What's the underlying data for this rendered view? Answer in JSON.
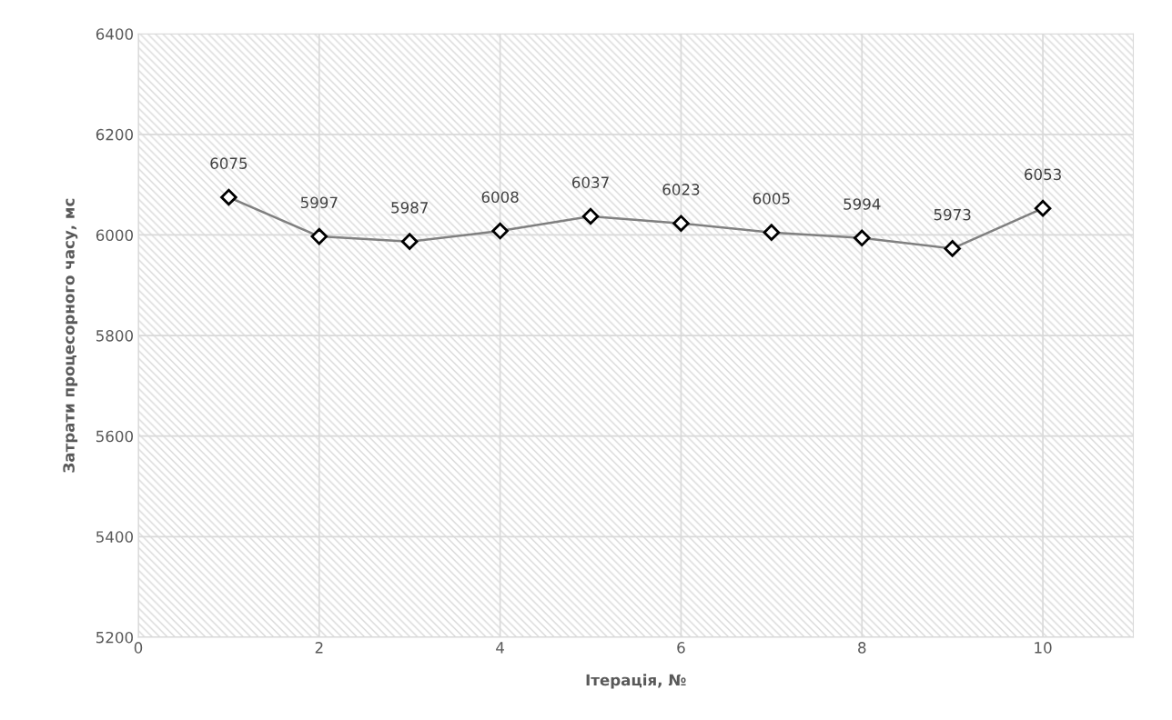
{
  "chart_data": {
    "type": "line",
    "xlabel": "Ітерація, №",
    "ylabel": "Затрати процесорного часу, мс",
    "x": [
      1,
      2,
      3,
      4,
      5,
      6,
      7,
      8,
      9,
      10
    ],
    "series": [
      {
        "color": "#808080",
        "values": [
          6075,
          5997,
          5987,
          6008,
          6037,
          6023,
          6005,
          5994,
          5973,
          6053
        ]
      }
    ],
    "xlim": [
      0,
      11
    ],
    "xticks": [
      0,
      2,
      4,
      6,
      8,
      10
    ],
    "ylim": [
      5200,
      6400
    ],
    "yticks": [
      5200,
      5400,
      5600,
      5800,
      6000,
      6200,
      6400
    ],
    "grid": true,
    "marker": "diamond",
    "line_style": "solid",
    "data_labels": true
  }
}
